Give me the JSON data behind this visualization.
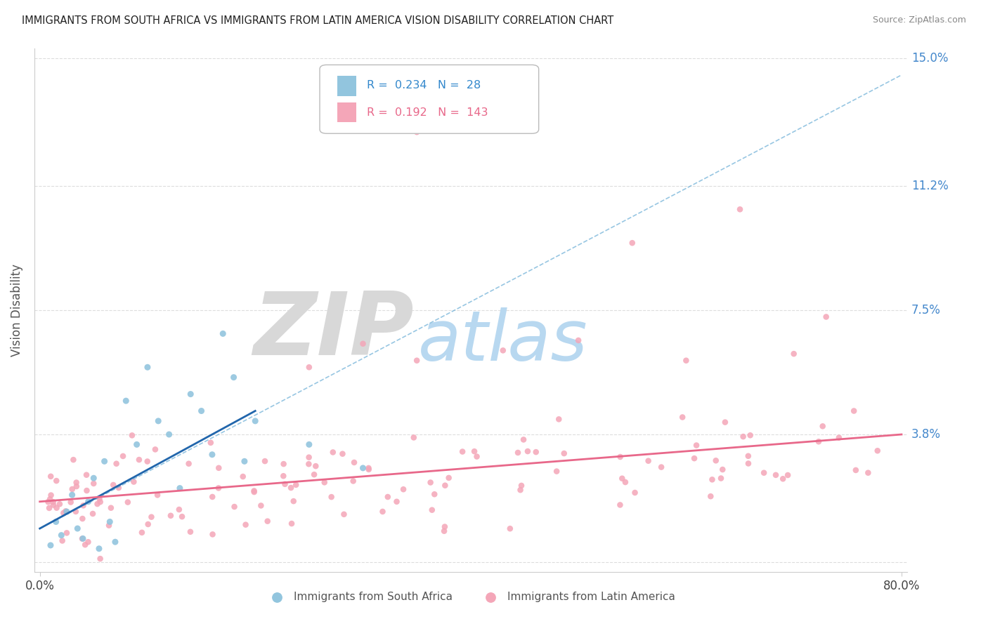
{
  "title": "IMMIGRANTS FROM SOUTH AFRICA VS IMMIGRANTS FROM LATIN AMERICA VISION DISABILITY CORRELATION CHART",
  "source": "Source: ZipAtlas.com",
  "ylabel": "Vision Disability",
  "yticks": [
    0.0,
    3.8,
    7.5,
    11.2,
    15.0
  ],
  "ytick_labels": [
    "",
    "3.8%",
    "7.5%",
    "11.2%",
    "15.0%"
  ],
  "xmin": 0.0,
  "xmax": 80.0,
  "ymin": 0.0,
  "ymax": 15.0,
  "blue_R": 0.234,
  "blue_N": 28,
  "pink_R": 0.192,
  "pink_N": 143,
  "blue_color": "#92c5de",
  "pink_color": "#f4a6b8",
  "blue_line_color": "#2166ac",
  "pink_line_color": "#e8688a",
  "blue_dashed_color": "#6baed6",
  "legend_label_blue": "Immigrants from South Africa",
  "legend_label_pink": "Immigrants from Latin America",
  "watermark_zip_color": "#d8d8d8",
  "watermark_atlas_color": "#b8d8f0",
  "background_color": "#ffffff",
  "grid_color": "#dddddd",
  "blue_line_x_end": 20.0,
  "blue_line_start_y": 1.0,
  "blue_line_end_y": 4.5,
  "blue_dashed_start_y": 1.0,
  "blue_dashed_end_y": 14.5,
  "pink_line_start_y": 1.8,
  "pink_line_end_y": 3.8
}
